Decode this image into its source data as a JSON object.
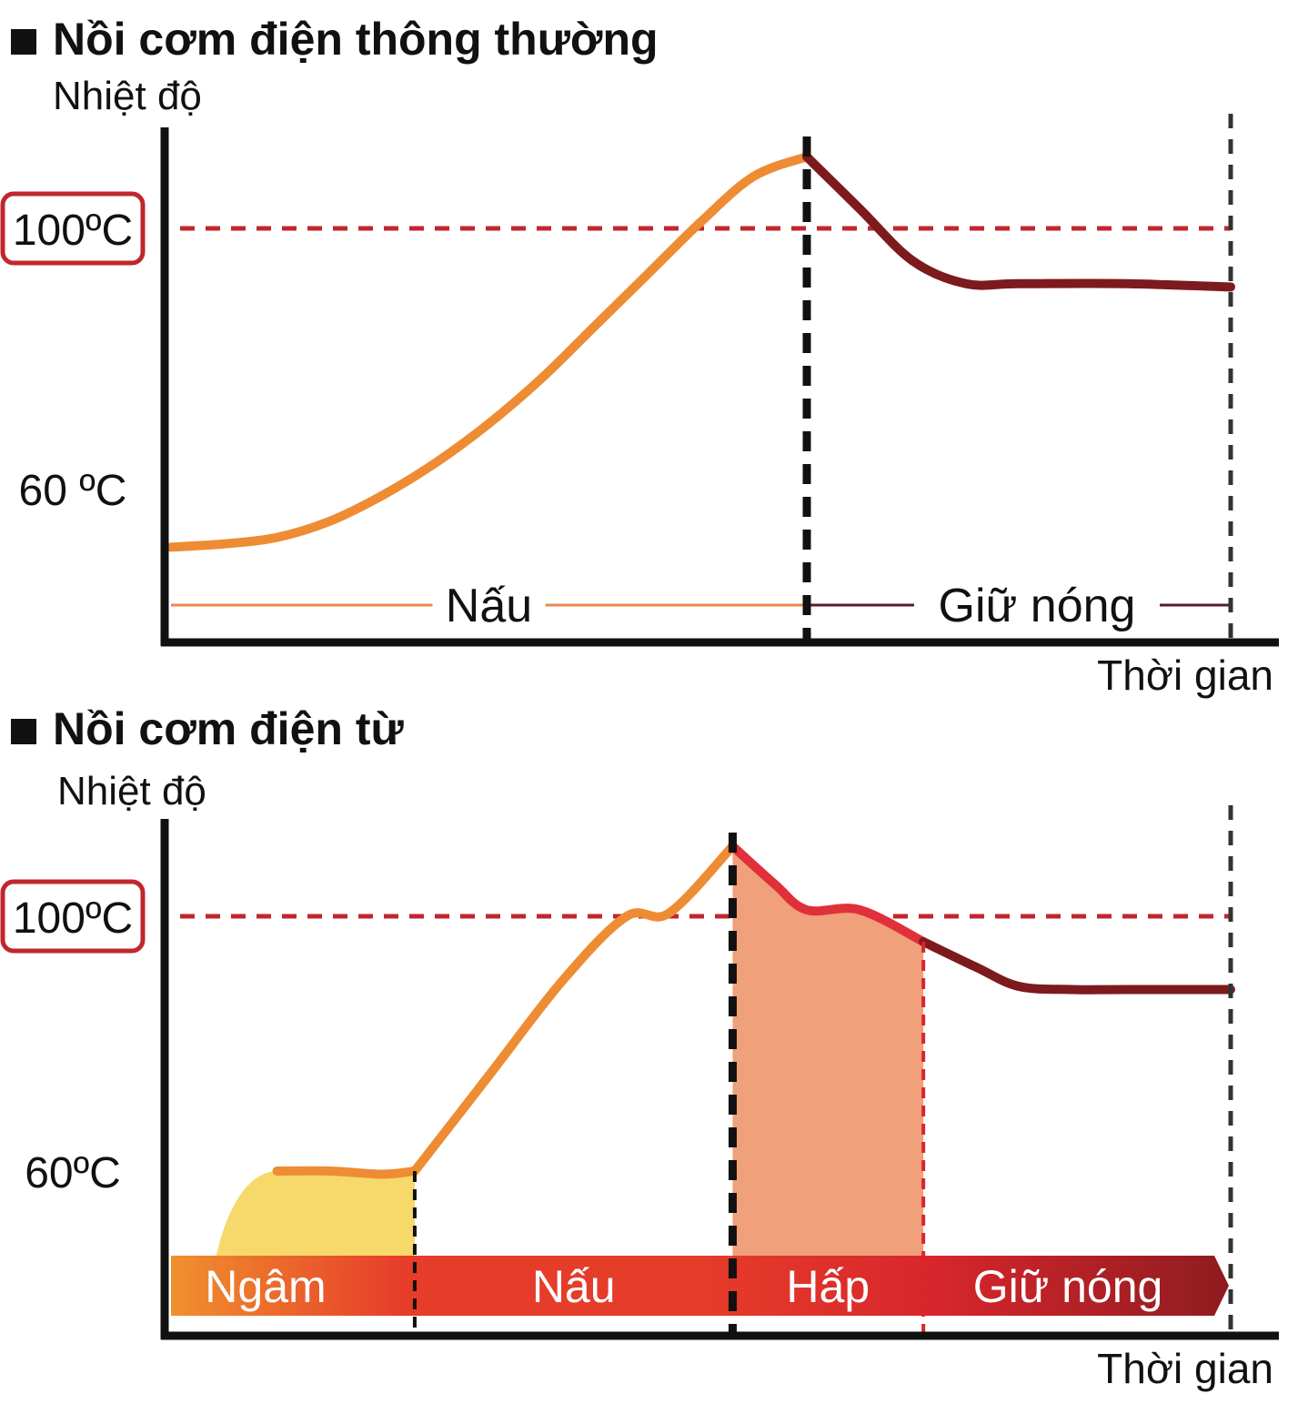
{
  "colors": {
    "axis": "#111111",
    "ref_line": "#c0272d",
    "tick_box": "#c0272d",
    "phase_divider": "#111111",
    "end_divider": "#333333",
    "cook_curve": "#ee8c33",
    "keep_curve": "#7d1a1d",
    "steam_curve": "#e0303a",
    "soak_fill": "#f6d96a",
    "steam_fill": "#f0a07a",
    "band_soak": "#f0902e",
    "band_cook": "#e63c2a",
    "band_steam": "#d8262c",
    "band_keep": "#8e1c20",
    "nau_line": "#e8894d",
    "giu_line": "#5a1c2a"
  },
  "chart_data": [
    {
      "type": "line",
      "title": "Nồi cơm điện thông thường",
      "ylabel": "Nhiệt độ",
      "xlabel": "Thời gian",
      "y_ticks": [
        {
          "label": "100ºC",
          "value": 100,
          "boxed": true
        },
        {
          "label": "60 ºC",
          "value": 60,
          "boxed": false
        }
      ],
      "reference_line": 100,
      "phases": [
        {
          "label": "Nấu",
          "start": 0,
          "end": 6
        },
        {
          "label": "Giữ nóng",
          "start": 6,
          "end": 10
        }
      ],
      "series": [
        {
          "role": "cook",
          "x": [
            0,
            0.5,
            1,
            1.5,
            2,
            2.5,
            3,
            3.5,
            4,
            4.5,
            5,
            5.5,
            6
          ],
          "y": [
            51,
            51.5,
            52.5,
            55,
            59,
            64,
            70,
            77,
            85,
            93,
            101,
            108,
            111
          ]
        },
        {
          "role": "keep",
          "x": [
            6,
            6.5,
            7,
            7.5,
            8,
            9,
            10
          ],
          "y": [
            111,
            103,
            95,
            91.5,
            91.5,
            91.5,
            91
          ]
        }
      ]
    },
    {
      "type": "line",
      "title": "Nồi cơm điện từ",
      "ylabel": "Nhiệt độ",
      "xlabel": "Thời gian",
      "y_ticks": [
        {
          "label": "100ºC",
          "value": 100,
          "boxed": true
        },
        {
          "label": "60ºC",
          "value": 60,
          "boxed": false
        }
      ],
      "reference_line": 100,
      "phases": [
        {
          "label": "Ngâm",
          "start": 0,
          "end": 2.3
        },
        {
          "label": "Nấu",
          "start": 2.3,
          "end": 5.3
        },
        {
          "label": "Hấp",
          "start": 5.3,
          "end": 7.1
        },
        {
          "label": "Giữ nóng",
          "start": 7.1,
          "end": 10
        }
      ],
      "series": [
        {
          "role": "soak",
          "x": [
            1,
            1.5,
            2,
            2.3
          ],
          "y": [
            60,
            60,
            59.5,
            60
          ]
        },
        {
          "role": "cook",
          "x": [
            2.3,
            3,
            3.7,
            4.3,
            4.7,
            5.3
          ],
          "y": [
            60,
            75,
            90,
            100,
            100.5,
            111
          ]
        },
        {
          "role": "steam",
          "x": [
            5.3,
            5.7,
            6,
            6.5,
            7.1
          ],
          "y": [
            111,
            105,
            101,
            101,
            96
          ]
        },
        {
          "role": "keep",
          "x": [
            7.1,
            7.6,
            8,
            8.5,
            9,
            10
          ],
          "y": [
            96,
            92,
            89,
            88.5,
            88.5,
            88.5
          ]
        }
      ]
    }
  ]
}
